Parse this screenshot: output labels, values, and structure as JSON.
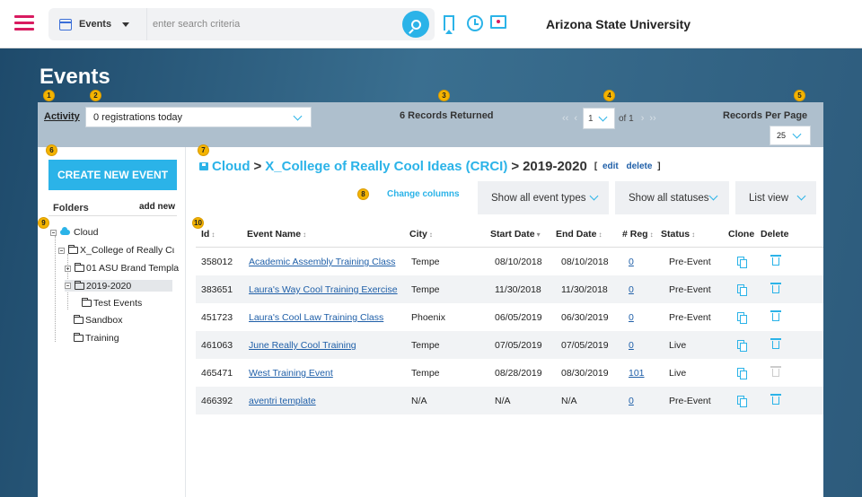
{
  "topbar": {
    "module": "Events",
    "search_placeholder": "enter search criteria",
    "org": "Arizona State University",
    "icons": [
      "hamburger-icon",
      "calendar-icon",
      "search-icon",
      "bookmark-icon",
      "clock-icon",
      "folder-user-icon"
    ]
  },
  "page": {
    "title": "Events"
  },
  "filters": {
    "activity_label": "Activity",
    "activity_value": "0 registrations today",
    "records": "6 Records Returned",
    "page_value": "1",
    "page_of": "of 1",
    "rpp_label": "Records Per Page",
    "rpp_value": "25"
  },
  "badges": [
    "1",
    "2",
    "3",
    "4",
    "5",
    "6",
    "7",
    "8",
    "9",
    "10"
  ],
  "sidebar": {
    "create_button": "CREATE NEW EVENT",
    "folders_label": "Folders",
    "add_new": "add new",
    "tree": [
      {
        "label": "Cloud"
      },
      {
        "label": "X_College of Really Cι"
      },
      {
        "label": "01 ASU Brand Templa"
      },
      {
        "label": "2019-2020"
      },
      {
        "label": "Test Events"
      },
      {
        "label": "Sandbox"
      },
      {
        "label": "Training"
      }
    ]
  },
  "breadcrumb": {
    "root": "Cloud",
    "sep": ">",
    "middle": "X_College of Really Cool Ideas (CRCI)",
    "current": "2019-2020",
    "open_bracket": "[",
    "edit": "edit",
    "delete": "delete",
    "close_bracket": "]"
  },
  "toolbar": {
    "change_columns": "Change columns",
    "types": "Show all event types",
    "statuses": "Show all statuses",
    "view": "List view"
  },
  "table": {
    "headers": [
      "Id",
      "Event Name",
      "City",
      "Start Date",
      "End Date",
      "# Reg",
      "Status",
      "Clone",
      "Delete"
    ],
    "sort_glyph": "↕",
    "sort_glyph2": "▾",
    "rows": [
      {
        "id": "358012",
        "name": "Academic Assembly Training Class",
        "city": "Tempe",
        "start": "08/10/2018",
        "end": "08/10/2018",
        "reg": "0",
        "status": "Pre-Event",
        "deletable": true
      },
      {
        "id": "383651",
        "name": "Laura's Way Cool Training Exercise",
        "city": "Tempe",
        "start": "11/30/2018",
        "end": "11/30/2018",
        "reg": "0",
        "status": "Pre-Event",
        "deletable": true
      },
      {
        "id": "451723",
        "name": "Laura's Cool Law Training Class",
        "city": "Phoenix",
        "start": "06/05/2019",
        "end": "06/30/2019",
        "reg": "0",
        "status": "Pre-Event",
        "deletable": true
      },
      {
        "id": "461063",
        "name": "June Really Cool Training",
        "city": "Tempe",
        "start": "07/05/2019",
        "end": "07/05/2019",
        "reg": "0",
        "status": "Live",
        "deletable": true
      },
      {
        "id": "465471",
        "name": "West Training Event",
        "city": "Tempe",
        "start": "08/28/2019",
        "end": "08/30/2019",
        "reg": "101",
        "status": "Live",
        "deletable": false
      },
      {
        "id": "466392",
        "name": "aventri template",
        "city": "N/A",
        "start": "N/A",
        "end": "N/A",
        "reg": "0",
        "status": "Pre-Event",
        "deletable": true
      }
    ]
  },
  "colors": {
    "accent": "#2bb3e8",
    "brand": "#d81b60",
    "link": "#1f5fa8",
    "badge": "#f4b400"
  }
}
